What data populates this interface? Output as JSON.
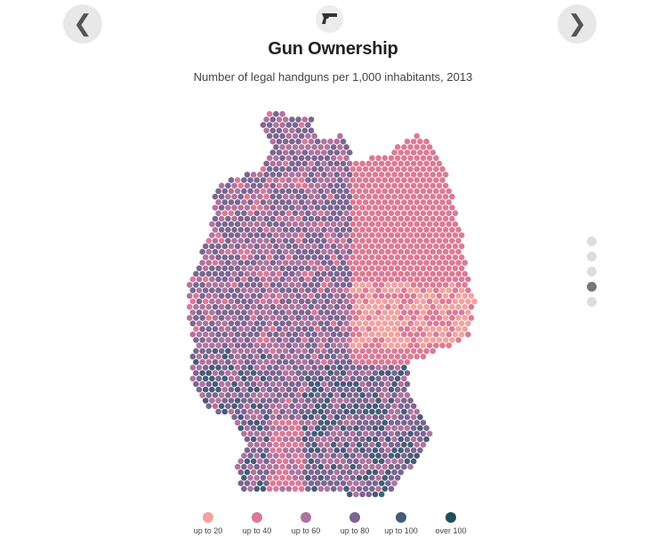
{
  "header": {
    "title": "Gun Ownership",
    "subtitle": "Number of legal handguns per 1,000 inhabitants, 2013",
    "prev_label": "❮",
    "next_label": "❯",
    "topic_icon": "handgun-icon"
  },
  "pager": {
    "count": 5,
    "active_index": 3
  },
  "legend": {
    "items": [
      {
        "label": "up to 20",
        "color": "#f2a3a0"
      },
      {
        "label": "up to 40",
        "color": "#dd7996"
      },
      {
        "label": "up to 60",
        "color": "#b0739e"
      },
      {
        "label": "up to 80",
        "color": "#7b6592"
      },
      {
        "label": "up to 100",
        "color": "#465b78"
      },
      {
        "label": "over 100",
        "color": "#1f4f5a"
      }
    ]
  },
  "colors": {
    "button_bg": "#e8e8e8",
    "pager_inactive": "#dddddd",
    "pager_active": "#777777"
  }
}
